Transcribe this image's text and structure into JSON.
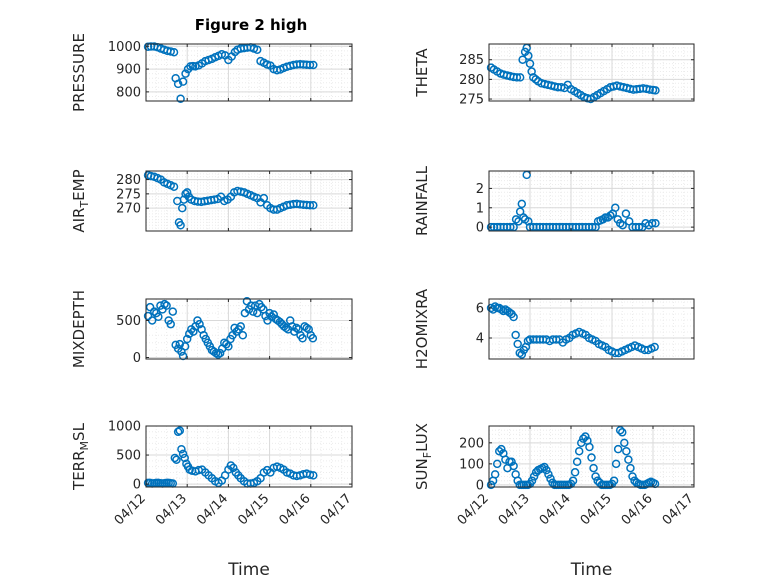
{
  "figure_title": "Figure 2 high",
  "colors": {
    "marker": "#0072bd",
    "axes": "#262626",
    "grid_major": "#d9d9d9",
    "grid_minor": "#ececec"
  },
  "chart_data": [
    {
      "type": "scatter",
      "title": "Figure 2 high",
      "xlabel": "",
      "ylabel": "PRESSURE",
      "xticks": [
        "04/12",
        "04/13",
        "04/14",
        "04/15",
        "04/16",
        "04/17"
      ],
      "xlim": [
        0,
        5
      ],
      "ylim": [
        760,
        1010
      ],
      "yticks": [
        800,
        900,
        1000
      ],
      "grid": true,
      "x": [
        0.05,
        0.12,
        0.2,
        0.28,
        0.36,
        0.44,
        0.52,
        0.6,
        0.68,
        0.72,
        0.78,
        0.84,
        0.9,
        0.96,
        1.02,
        1.08,
        1.14,
        1.2,
        1.28,
        1.36,
        1.44,
        1.52,
        1.6,
        1.68,
        1.76,
        1.84,
        1.92,
        2.0,
        2.08,
        2.16,
        2.22,
        2.3,
        2.38,
        2.46,
        2.54,
        2.62,
        2.7,
        2.78,
        2.86,
        2.94,
        3.02,
        3.1,
        3.18,
        3.26,
        3.34,
        3.42,
        3.5,
        3.58,
        3.66,
        3.74,
        3.82,
        3.9,
        3.98,
        4.06
      ],
      "y": [
        998,
        999,
        999,
        996,
        990,
        985,
        980,
        977,
        974,
        860,
        835,
        770,
        845,
        880,
        900,
        912,
        913,
        912,
        916,
        925,
        935,
        940,
        945,
        952,
        958,
        965,
        960,
        940,
        955,
        975,
        985,
        990,
        992,
        994,
        995,
        990,
        985,
        935,
        928,
        920,
        915,
        900,
        895,
        898,
        905,
        910,
        914,
        918,
        920,
        921,
        920,
        919,
        918,
        918
      ]
    },
    {
      "type": "scatter",
      "xlabel": "",
      "ylabel": "THETA",
      "xticks": [
        "04/12",
        "04/13",
        "04/14",
        "04/15",
        "04/16",
        "04/17"
      ],
      "xlim": [
        0,
        5
      ],
      "ylim": [
        274.5,
        289
      ],
      "yticks": [
        275,
        280,
        285
      ],
      "grid": true,
      "x": [
        0.05,
        0.12,
        0.2,
        0.28,
        0.36,
        0.44,
        0.52,
        0.6,
        0.68,
        0.76,
        0.82,
        0.88,
        0.92,
        0.96,
        1.0,
        1.04,
        1.08,
        1.14,
        1.2,
        1.28,
        1.36,
        1.44,
        1.52,
        1.6,
        1.68,
        1.76,
        1.84,
        1.92,
        2.0,
        2.08,
        2.16,
        2.24,
        2.32,
        2.4,
        2.48,
        2.56,
        2.64,
        2.72,
        2.8,
        2.88,
        2.96,
        3.04,
        3.12,
        3.2,
        3.28,
        3.36,
        3.44,
        3.52,
        3.6,
        3.68,
        3.76,
        3.84,
        3.92,
        4.0,
        4.06
      ],
      "y": [
        283,
        282.5,
        282,
        281.5,
        281.2,
        281,
        280.8,
        280.6,
        280.5,
        280.5,
        285,
        287,
        288,
        286,
        284,
        282,
        280.5,
        280,
        279.5,
        279,
        278.8,
        278.6,
        278.4,
        278.2,
        278,
        278,
        277.8,
        278.6,
        277.5,
        277,
        276.5,
        276,
        275.5,
        275.2,
        275,
        275.5,
        276,
        276.5,
        277,
        277.5,
        278,
        278.2,
        278.4,
        278.2,
        278,
        277.8,
        277.6,
        277.4,
        277.5,
        277.6,
        277.7,
        277.6,
        277.4,
        277.3,
        277.2
      ]
    },
    {
      "type": "scatter",
      "xlabel": "",
      "ylabel": "AIR_TEMP",
      "xticks": [
        "04/12",
        "04/13",
        "04/14",
        "04/15",
        "04/16",
        "04/17"
      ],
      "xlim": [
        0,
        5
      ],
      "ylim": [
        262,
        283
      ],
      "yticks": [
        270,
        275,
        280
      ],
      "grid": true,
      "x": [
        0.05,
        0.12,
        0.2,
        0.28,
        0.36,
        0.44,
        0.52,
        0.6,
        0.68,
        0.76,
        0.8,
        0.84,
        0.88,
        0.92,
        0.96,
        1.0,
        1.04,
        1.1,
        1.18,
        1.26,
        1.34,
        1.42,
        1.5,
        1.58,
        1.66,
        1.74,
        1.82,
        1.9,
        1.98,
        2.06,
        2.14,
        2.22,
        2.3,
        2.38,
        2.46,
        2.54,
        2.62,
        2.7,
        2.78,
        2.86,
        2.94,
        3.02,
        3.1,
        3.18,
        3.26,
        3.34,
        3.42,
        3.5,
        3.58,
        3.66,
        3.74,
        3.82,
        3.9,
        3.98,
        4.06
      ],
      "y": [
        281.5,
        281.2,
        281,
        280.5,
        280,
        279,
        278.5,
        278,
        277.5,
        272.5,
        265,
        264,
        270,
        273,
        275,
        275.5,
        274,
        273,
        272.5,
        272.3,
        272.2,
        272.4,
        272.6,
        272.8,
        273,
        273.2,
        274,
        272.5,
        273,
        274,
        275.5,
        276,
        275.8,
        275.5,
        275,
        274.5,
        274,
        273.5,
        272,
        273.5,
        271,
        270,
        269.5,
        269.5,
        270,
        270.5,
        271,
        271.2,
        271.4,
        271.5,
        271.3,
        271.2,
        271.1,
        271,
        271
      ]
    },
    {
      "type": "scatter",
      "xlabel": "",
      "ylabel": "RAINFALL",
      "xticks": [
        "04/12",
        "04/13",
        "04/14",
        "04/15",
        "04/16",
        "04/17"
      ],
      "xlim": [
        0,
        5
      ],
      "ylim": [
        -0.2,
        2.9
      ],
      "yticks": [
        0,
        1,
        2
      ],
      "grid": true,
      "x": [
        0.05,
        0.12,
        0.2,
        0.28,
        0.36,
        0.44,
        0.52,
        0.6,
        0.66,
        0.72,
        0.76,
        0.8,
        0.84,
        0.88,
        0.92,
        0.96,
        1.0,
        1.08,
        1.16,
        1.24,
        1.32,
        1.4,
        1.48,
        1.56,
        1.64,
        1.72,
        1.8,
        1.88,
        1.96,
        2.04,
        2.12,
        2.2,
        2.28,
        2.36,
        2.44,
        2.52,
        2.6,
        2.66,
        2.72,
        2.78,
        2.84,
        2.9,
        2.96,
        3.02,
        3.08,
        3.14,
        3.2,
        3.26,
        3.34,
        3.42,
        3.5,
        3.58,
        3.66,
        3.74,
        3.82,
        3.9,
        3.98,
        4.06
      ],
      "y": [
        0,
        0,
        0,
        0,
        0,
        0,
        0,
        0,
        0.4,
        0.3,
        0.8,
        1.2,
        0.5,
        0.4,
        2.7,
        0.3,
        0,
        0,
        0,
        0,
        0,
        0,
        0,
        0,
        0,
        0,
        0,
        0,
        0,
        0,
        0,
        0,
        0,
        0,
        0,
        0,
        0,
        0.3,
        0.35,
        0.4,
        0.5,
        0.5,
        0.6,
        0.7,
        1.0,
        0.4,
        0.2,
        0.1,
        0.7,
        0.3,
        0,
        0,
        0,
        0,
        0.2,
        0.1,
        0.2,
        0.2
      ]
    },
    {
      "type": "scatter",
      "xlabel": "",
      "ylabel": "MIXDEPTH",
      "xticks": [
        "04/12",
        "04/13",
        "04/14",
        "04/15",
        "04/16",
        "04/17"
      ],
      "xlim": [
        0,
        5
      ],
      "ylim": [
        -20,
        790
      ],
      "yticks": [
        0,
        500
      ],
      "grid": true,
      "x": [
        0.05,
        0.1,
        0.15,
        0.2,
        0.25,
        0.3,
        0.35,
        0.4,
        0.45,
        0.5,
        0.55,
        0.6,
        0.65,
        0.72,
        0.78,
        0.82,
        0.86,
        0.9,
        0.95,
        1.0,
        1.05,
        1.1,
        1.15,
        1.2,
        1.25,
        1.3,
        1.35,
        1.4,
        1.45,
        1.5,
        1.55,
        1.6,
        1.65,
        1.7,
        1.75,
        1.8,
        1.85,
        1.9,
        1.95,
        2.0,
        2.05,
        2.1,
        2.15,
        2.2,
        2.25,
        2.3,
        2.35,
        2.4,
        2.45,
        2.5,
        2.55,
        2.6,
        2.65,
        2.7,
        2.75,
        2.8,
        2.85,
        2.9,
        2.95,
        3.0,
        3.05,
        3.1,
        3.15,
        3.2,
        3.25,
        3.3,
        3.35,
        3.4,
        3.45,
        3.5,
        3.55,
        3.6,
        3.65,
        3.7,
        3.75,
        3.8,
        3.85,
        3.9,
        3.95,
        4.0,
        4.05
      ],
      "y": [
        560,
        680,
        500,
        620,
        600,
        550,
        700,
        650,
        720,
        700,
        500,
        450,
        620,
        170,
        120,
        180,
        80,
        20,
        150,
        250,
        320,
        380,
        350,
        420,
        500,
        450,
        380,
        300,
        250,
        200,
        150,
        100,
        80,
        60,
        40,
        60,
        120,
        200,
        180,
        150,
        250,
        300,
        400,
        350,
        380,
        420,
        300,
        600,
        760,
        650,
        700,
        620,
        700,
        600,
        720,
        680,
        650,
        560,
        500,
        600,
        550,
        580,
        520,
        500,
        480,
        450,
        420,
        400,
        380,
        500,
        420,
        350,
        400,
        380,
        300,
        260,
        420,
        400,
        380,
        300,
        260
      ]
    },
    {
      "type": "scatter",
      "xlabel": "",
      "ylabel": "H2OMIXRA",
      "xticks": [
        "04/12",
        "04/13",
        "04/14",
        "04/15",
        "04/16",
        "04/17"
      ],
      "xlim": [
        0,
        5
      ],
      "ylim": [
        2.6,
        6.6
      ],
      "yticks": [
        4,
        6
      ],
      "grid": true,
      "x": [
        0.05,
        0.1,
        0.15,
        0.2,
        0.25,
        0.3,
        0.35,
        0.4,
        0.45,
        0.5,
        0.55,
        0.6,
        0.65,
        0.7,
        0.75,
        0.8,
        0.85,
        0.9,
        0.95,
        1.0,
        1.08,
        1.16,
        1.24,
        1.32,
        1.4,
        1.48,
        1.56,
        1.64,
        1.72,
        1.8,
        1.88,
        1.96,
        2.04,
        2.12,
        2.2,
        2.28,
        2.36,
        2.44,
        2.52,
        2.6,
        2.68,
        2.76,
        2.84,
        2.92,
        3.0,
        3.08,
        3.16,
        3.24,
        3.32,
        3.4,
        3.48,
        3.56,
        3.64,
        3.72,
        3.8,
        3.88,
        3.96,
        4.04
      ],
      "y": [
        6.0,
        5.9,
        6.1,
        6.0,
        6.0,
        5.9,
        5.8,
        5.9,
        5.8,
        5.7,
        5.6,
        5.4,
        4.2,
        3.6,
        3.0,
        2.9,
        3.2,
        3.4,
        3.8,
        3.9,
        3.9,
        3.9,
        3.9,
        3.9,
        3.9,
        3.8,
        3.9,
        3.9,
        3.9,
        3.7,
        3.9,
        4.0,
        4.2,
        4.3,
        4.4,
        4.3,
        4.2,
        4.0,
        3.9,
        3.8,
        3.6,
        3.5,
        3.4,
        3.2,
        3.1,
        3.0,
        3.0,
        3.1,
        3.2,
        3.3,
        3.4,
        3.5,
        3.4,
        3.3,
        3.2,
        3.2,
        3.3,
        3.4
      ]
    },
    {
      "type": "scatter",
      "xlabel": "Time",
      "ylabel": "TERR_MSL",
      "xticks": [
        "04/12",
        "04/13",
        "04/14",
        "04/15",
        "04/16",
        "04/17"
      ],
      "xlim": [
        0,
        5
      ],
      "ylim": [
        -50,
        1000
      ],
      "yticks": [
        0,
        500,
        1000
      ],
      "grid": true,
      "x": [
        0.05,
        0.1,
        0.15,
        0.2,
        0.25,
        0.3,
        0.35,
        0.4,
        0.45,
        0.5,
        0.55,
        0.6,
        0.65,
        0.7,
        0.74,
        0.78,
        0.82,
        0.86,
        0.9,
        0.94,
        0.98,
        1.02,
        1.06,
        1.12,
        1.2,
        1.28,
        1.36,
        1.44,
        1.52,
        1.6,
        1.68,
        1.76,
        1.84,
        1.92,
        2.0,
        2.06,
        2.12,
        2.18,
        2.24,
        2.3,
        2.38,
        2.46,
        2.54,
        2.62,
        2.7,
        2.78,
        2.86,
        2.94,
        3.02,
        3.1,
        3.18,
        3.26,
        3.34,
        3.42,
        3.5,
        3.58,
        3.66,
        3.74,
        3.82,
        3.9,
        3.98,
        4.06
      ],
      "y": [
        20,
        20,
        10,
        15,
        20,
        20,
        15,
        10,
        15,
        20,
        20,
        15,
        10,
        450,
        420,
        900,
        920,
        600,
        520,
        450,
        350,
        300,
        250,
        230,
        220,
        240,
        250,
        200,
        150,
        100,
        50,
        20,
        60,
        150,
        250,
        320,
        280,
        200,
        150,
        100,
        50,
        10,
        10,
        20,
        50,
        100,
        200,
        240,
        200,
        280,
        300,
        280,
        250,
        200,
        180,
        150,
        140,
        150,
        170,
        180,
        160,
        150
      ]
    },
    {
      "type": "scatter",
      "xlabel": "Time",
      "ylabel": "SUN_FLUX",
      "xticks": [
        "04/12",
        "04/13",
        "04/14",
        "04/15",
        "04/16",
        "04/17"
      ],
      "xlim": [
        0,
        5
      ],
      "ylim": [
        -10,
        280
      ],
      "yticks": [
        0,
        100,
        200
      ],
      "grid": true,
      "x": [
        0.05,
        0.1,
        0.15,
        0.2,
        0.25,
        0.3,
        0.35,
        0.4,
        0.45,
        0.5,
        0.55,
        0.6,
        0.65,
        0.7,
        0.75,
        0.8,
        0.85,
        0.9,
        0.95,
        1.0,
        1.05,
        1.1,
        1.15,
        1.2,
        1.25,
        1.3,
        1.35,
        1.4,
        1.45,
        1.5,
        1.55,
        1.6,
        1.65,
        1.7,
        1.75,
        1.8,
        1.85,
        1.9,
        1.95,
        2.0,
        2.05,
        2.1,
        2.15,
        2.2,
        2.25,
        2.3,
        2.35,
        2.4,
        2.45,
        2.5,
        2.55,
        2.6,
        2.65,
        2.7,
        2.75,
        2.8,
        2.85,
        2.9,
        2.95,
        3.0,
        3.05,
        3.1,
        3.15,
        3.2,
        3.25,
        3.3,
        3.35,
        3.4,
        3.45,
        3.5,
        3.55,
        3.6,
        3.65,
        3.7,
        3.75,
        3.8,
        3.85,
        3.9,
        3.95,
        4.0,
        4.05
      ],
      "y": [
        0,
        20,
        50,
        100,
        160,
        170,
        150,
        120,
        80,
        110,
        110,
        90,
        50,
        20,
        0,
        0,
        0,
        0,
        0,
        5,
        20,
        40,
        60,
        70,
        75,
        80,
        85,
        70,
        50,
        30,
        10,
        0,
        0,
        0,
        0,
        0,
        0,
        0,
        0,
        5,
        20,
        60,
        110,
        160,
        200,
        220,
        230,
        210,
        180,
        130,
        80,
        40,
        20,
        10,
        0,
        0,
        0,
        0,
        0,
        5,
        20,
        100,
        170,
        260,
        250,
        200,
        160,
        120,
        80,
        40,
        20,
        10,
        5,
        0,
        0,
        0,
        5,
        10,
        15,
        10,
        5
      ]
    }
  ]
}
